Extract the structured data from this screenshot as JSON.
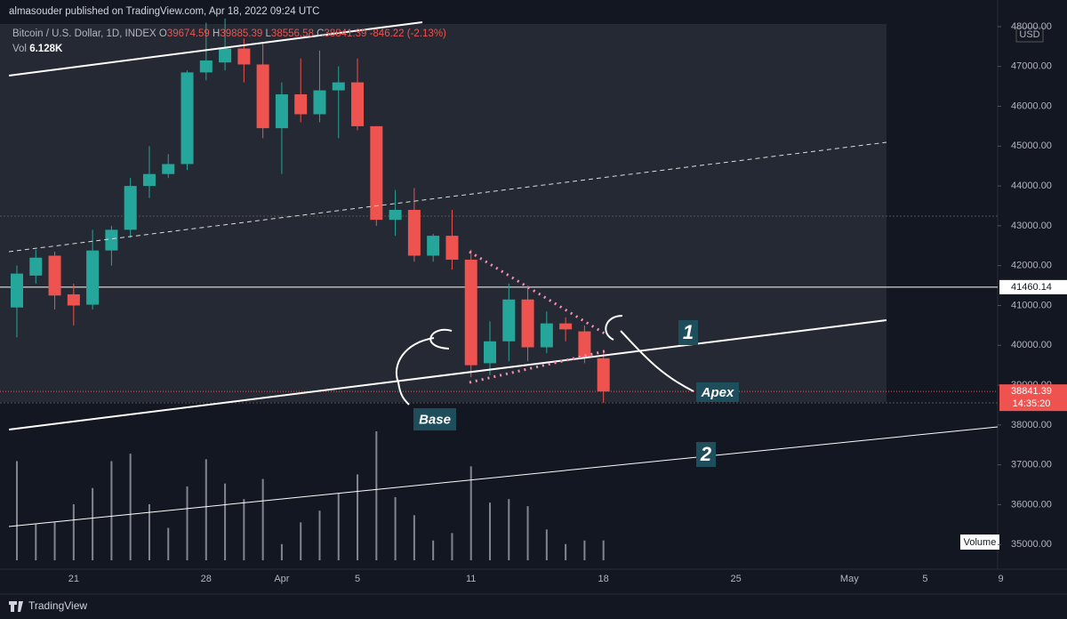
{
  "header": {
    "published": "almasouder published on TradingView.com, Apr 18, 2022 09:24 UTC",
    "symbol": "Bitcoin / U.S. Dollar, 1D, INDEX",
    "ohlc_labels": [
      "O",
      "H",
      "L",
      "C"
    ],
    "change": "-846.22 (-2.13%)",
    "volume_label": "Vol",
    "volume_value": "6.128K"
  },
  "chart_data": {
    "type": "candlestick",
    "categories": [
      null,
      null,
      null,
      "21",
      null,
      null,
      null,
      null,
      null,
      null,
      "28",
      null,
      null,
      null,
      "Apr",
      null,
      null,
      null,
      "5",
      null,
      null,
      null,
      null,
      null,
      "11",
      null,
      null,
      null,
      null,
      null,
      null,
      "18",
      null,
      null,
      null,
      null,
      null,
      null,
      "25",
      null,
      null,
      null,
      null,
      null,
      "May",
      null,
      null,
      null,
      "5",
      null,
      null,
      null,
      "9"
    ],
    "open": [
      40950,
      41750,
      42250,
      41280,
      41020,
      42380,
      42900,
      44000,
      44300,
      44550,
      46850,
      47100,
      47450,
      47050,
      45450,
      46300,
      45800,
      46400,
      46600,
      45500,
      43150,
      43400,
      42250,
      42750,
      42150,
      39550,
      40100,
      41150,
      39950,
      40550,
      40350,
      39674.59,
      null,
      null,
      null,
      null,
      null,
      null,
      null,
      null,
      null,
      null,
      null,
      null,
      null,
      null,
      null,
      null,
      null,
      null,
      null,
      null,
      null
    ],
    "high": [
      42000,
      42400,
      42350,
      41550,
      42900,
      43000,
      44200,
      45000,
      44800,
      46900,
      48100,
      48200,
      47700,
      47600,
      46600,
      47200,
      47400,
      47000,
      47200,
      45500,
      43900,
      43950,
      42800,
      43400,
      42400,
      40600,
      41550,
      41500,
      40850,
      40700,
      40500,
      39885.39,
      null,
      null,
      null,
      null,
      null,
      null,
      null,
      null,
      null,
      null,
      null,
      null,
      null,
      null,
      null,
      null,
      null,
      null,
      null,
      null,
      null
    ],
    "low": [
      40200,
      41550,
      40900,
      40500,
      40900,
      42000,
      42700,
      43700,
      44200,
      44400,
      46650,
      46900,
      46600,
      45200,
      44300,
      45600,
      45600,
      45200,
      45400,
      43000,
      42750,
      42100,
      42100,
      41900,
      39200,
      39250,
      39600,
      39600,
      39800,
      40100,
      39550,
      38556.58,
      null,
      null,
      null,
      null,
      null,
      null,
      null,
      null,
      null,
      null,
      null,
      null,
      null,
      null,
      null,
      null,
      null,
      null,
      null,
      null,
      null
    ],
    "close": [
      41800,
      42200,
      41250,
      41000,
      42380,
      42900,
      44000,
      44300,
      44550,
      46850,
      47150,
      47450,
      47050,
      45450,
      46300,
      45800,
      46400,
      46600,
      45500,
      43150,
      43400,
      42250,
      42750,
      42150,
      39500,
      40100,
      41150,
      39950,
      40550,
      40400,
      39700,
      38841.39,
      null,
      null,
      null,
      null,
      null,
      null,
      null,
      null,
      null,
      null,
      null,
      null,
      null,
      null,
      null,
      null,
      null,
      null,
      null,
      null,
      null
    ],
    "volume": {
      "name": "Volume",
      "color": "#b2b5be",
      "values": [
        30.6,
        11.1,
        11.7,
        17.3,
        22.3,
        30.6,
        32.9,
        17.3,
        10.0,
        22.8,
        31.2,
        23.7,
        18.9,
        25.1,
        5.0,
        11.7,
        15.3,
        20.6,
        26.5,
        39.8,
        19.5,
        13.9,
        6.1,
        8.4,
        29.0,
        17.8,
        18.9,
        16.7,
        9.5,
        5.0,
        6.1,
        6.128,
        null,
        null,
        null,
        null,
        null,
        null,
        null,
        null,
        null,
        null,
        null,
        null,
        null,
        null,
        null,
        null,
        null,
        null,
        null,
        null,
        null
      ]
    },
    "ylim": [
      34380,
      48110
    ],
    "yticks": [
      {
        "value": 35000,
        "label": "35000.00"
      },
      {
        "value": 36000,
        "label": "36000.00"
      },
      {
        "value": 37000,
        "label": "37000.00"
      },
      {
        "value": 38000,
        "label": "38000.00"
      },
      {
        "value": 39000,
        "label": "39000.00"
      },
      {
        "value": 40000,
        "label": "40000.00"
      },
      {
        "value": 41000,
        "label": "41000.00"
      },
      {
        "value": 42000,
        "label": "42000.00"
      },
      {
        "value": 43000,
        "label": "43000.00"
      },
      {
        "value": 44000,
        "label": "44000.00"
      },
      {
        "value": 45000,
        "label": "45000.00"
      },
      {
        "value": 46000,
        "label": "46000.00"
      },
      {
        "value": 47000,
        "label": "47000.00"
      },
      {
        "value": 48000,
        "label": "48000.00"
      }
    ],
    "currency": "USD",
    "hline": 41460.14,
    "countdown": "14:35:20",
    "colors": {
      "up": "#26a69a",
      "down": "#ef5350"
    },
    "annotations": [
      "1",
      "2",
      "Apex",
      "Base"
    ]
  },
  "footer": {
    "brand": "TradingView"
  }
}
